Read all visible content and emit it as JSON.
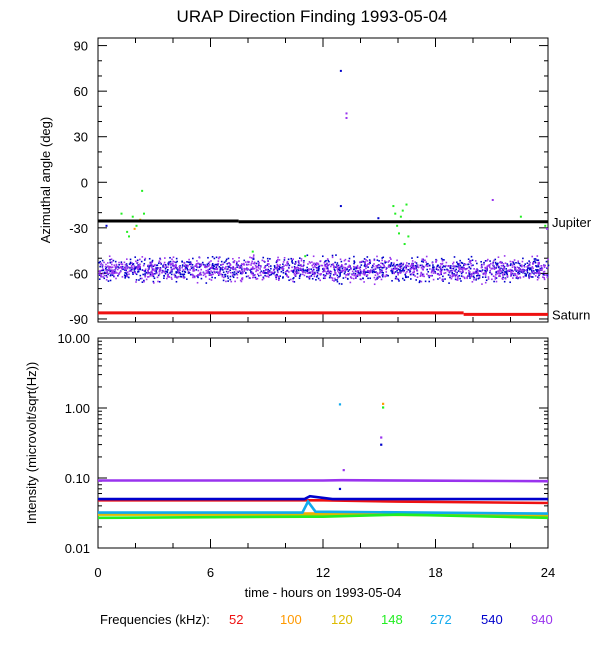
{
  "title": "URAP Direction Finding  1993-05-04",
  "xlabel": "time - hours on 1993-05-04",
  "colors": {
    "52": "#ee1111",
    "100": "#ff9900",
    "120": "#ddbb00",
    "148": "#22ee22",
    "272": "#11aaee",
    "540": "#0000cc",
    "940": "#9933ee",
    "black": "#000000"
  },
  "legend": {
    "label": "Frequencies (kHz):",
    "items": [
      {
        "freq": "52",
        "color": "#ee1111"
      },
      {
        "freq": "100",
        "color": "#ff9900"
      },
      {
        "freq": "120",
        "color": "#ddbb00"
      },
      {
        "freq": "148",
        "color": "#22ee22"
      },
      {
        "freq": "272",
        "color": "#11aaee"
      },
      {
        "freq": "540",
        "color": "#0000cc"
      },
      {
        "freq": "940",
        "color": "#9933ee"
      }
    ]
  },
  "chart_data": [
    {
      "type": "scatter",
      "ylabel": "Azimuthal angle (deg)",
      "xlim": [
        0,
        24
      ],
      "ylim": [
        -92,
        95
      ],
      "xticks": [
        0,
        6,
        12,
        18,
        24
      ],
      "yticks": [
        90,
        60,
        30,
        0,
        -30,
        -60,
        -90
      ],
      "reference_lines": [
        {
          "name": "Jupiter",
          "color": "#000000",
          "segments": [
            [
              0,
              7.5,
              -25.5
            ],
            [
              7.5,
              24,
              -26
            ]
          ]
        },
        {
          "name": "Saturn",
          "color": "#ee1111",
          "segments": [
            [
              0,
              19.5,
              -86
            ],
            [
              19.5,
              24,
              -87
            ]
          ]
        }
      ],
      "bands": [
        {
          "freq": "540",
          "x": [
            0,
            24
          ],
          "center": -57,
          "spread": 10
        },
        {
          "freq": "940",
          "x": [
            0,
            24
          ],
          "center": -57,
          "spread": 10
        }
      ],
      "scatter_points": [
        {
          "freq": "148",
          "x": 1.2,
          "y": -20
        },
        {
          "freq": "148",
          "x": 1.4,
          "y": -25
        },
        {
          "freq": "148",
          "x": 1.5,
          "y": -32
        },
        {
          "freq": "148",
          "x": 1.6,
          "y": -35
        },
        {
          "freq": "148",
          "x": 1.8,
          "y": -22
        },
        {
          "freq": "148",
          "x": 2.0,
          "y": -28
        },
        {
          "freq": "148",
          "x": 2.3,
          "y": -5
        },
        {
          "freq": "148",
          "x": 2.4,
          "y": -20
        },
        {
          "freq": "120",
          "x": 2.2,
          "y": -24
        },
        {
          "freq": "100",
          "x": 1.9,
          "y": -30
        },
        {
          "freq": "148",
          "x": 15.7,
          "y": -15
        },
        {
          "freq": "148",
          "x": 15.8,
          "y": -20
        },
        {
          "freq": "148",
          "x": 15.9,
          "y": -28
        },
        {
          "freq": "148",
          "x": 16.0,
          "y": -33
        },
        {
          "freq": "148",
          "x": 16.1,
          "y": -22
        },
        {
          "freq": "148",
          "x": 16.2,
          "y": -18
        },
        {
          "freq": "148",
          "x": 16.3,
          "y": -40
        },
        {
          "freq": "148",
          "x": 16.4,
          "y": -14
        },
        {
          "freq": "148",
          "x": 16.5,
          "y": -35
        },
        {
          "freq": "148",
          "x": 16.6,
          "y": -25
        },
        {
          "freq": "148",
          "x": 22.5,
          "y": -22
        },
        {
          "freq": "148",
          "x": 23.8,
          "y": -28
        },
        {
          "freq": "148",
          "x": 8.2,
          "y": -45
        },
        {
          "freq": "148",
          "x": 11.0,
          "y": -48
        },
        {
          "freq": "540",
          "x": 12.9,
          "y": 74
        },
        {
          "freq": "940",
          "x": 13.2,
          "y": 46
        },
        {
          "freq": "940",
          "x": 13.2,
          "y": 43
        },
        {
          "freq": "540",
          "x": 12.9,
          "y": -15
        },
        {
          "freq": "540",
          "x": 14.9,
          "y": -23
        },
        {
          "freq": "940",
          "x": 21.0,
          "y": -11
        },
        {
          "freq": "940",
          "x": 23.9,
          "y": -30
        },
        {
          "freq": "540",
          "x": 0.4,
          "y": -28
        }
      ]
    },
    {
      "type": "line",
      "ylabel": "Intensity (microvolt/sqrt(Hz))",
      "yscale": "log",
      "xlim": [
        0,
        24
      ],
      "ylim": [
        0.01,
        10
      ],
      "xticks": [
        0,
        6,
        12,
        18,
        24
      ],
      "yticks": [
        10.0,
        1.0,
        0.1,
        0.01
      ],
      "ytick_labels": [
        "10.00",
        "1.00",
        "0.10",
        "0.01"
      ],
      "series": [
        {
          "freq": "940",
          "x": [
            0,
            12,
            13,
            24
          ],
          "y": [
            0.092,
            0.092,
            0.093,
            0.09
          ]
        },
        {
          "freq": "52",
          "x": [
            0,
            12,
            16,
            24
          ],
          "y": [
            0.048,
            0.048,
            0.046,
            0.044
          ]
        },
        {
          "freq": "540",
          "x": [
            0,
            11,
            11.3,
            12.5,
            24
          ],
          "y": [
            0.05,
            0.05,
            0.055,
            0.05,
            0.05
          ]
        },
        {
          "freq": "100",
          "x": [
            0,
            12,
            24
          ],
          "y": [
            0.031,
            0.031,
            0.03
          ]
        },
        {
          "freq": "120",
          "x": [
            0,
            12,
            24
          ],
          "y": [
            0.03,
            0.03,
            0.029
          ]
        },
        {
          "freq": "272",
          "x": [
            0,
            10.9,
            11.2,
            11.6,
            24
          ],
          "y": [
            0.032,
            0.032,
            0.046,
            0.033,
            0.031
          ]
        },
        {
          "freq": "148",
          "x": [
            0,
            11,
            12,
            16,
            24
          ],
          "y": [
            0.027,
            0.028,
            0.028,
            0.03,
            0.027
          ]
        }
      ],
      "spikes": [
        {
          "freq": "272",
          "x": 12.9,
          "y": 1.13
        },
        {
          "freq": "100",
          "x": 15.2,
          "y": 1.15
        },
        {
          "freq": "148",
          "x": 15.2,
          "y": 1.02
        },
        {
          "freq": "940",
          "x": 15.1,
          "y": 0.38
        },
        {
          "freq": "540",
          "x": 15.1,
          "y": 0.3
        },
        {
          "freq": "940",
          "x": 13.1,
          "y": 0.13
        },
        {
          "freq": "540",
          "x": 12.9,
          "y": 0.07
        }
      ]
    }
  ]
}
